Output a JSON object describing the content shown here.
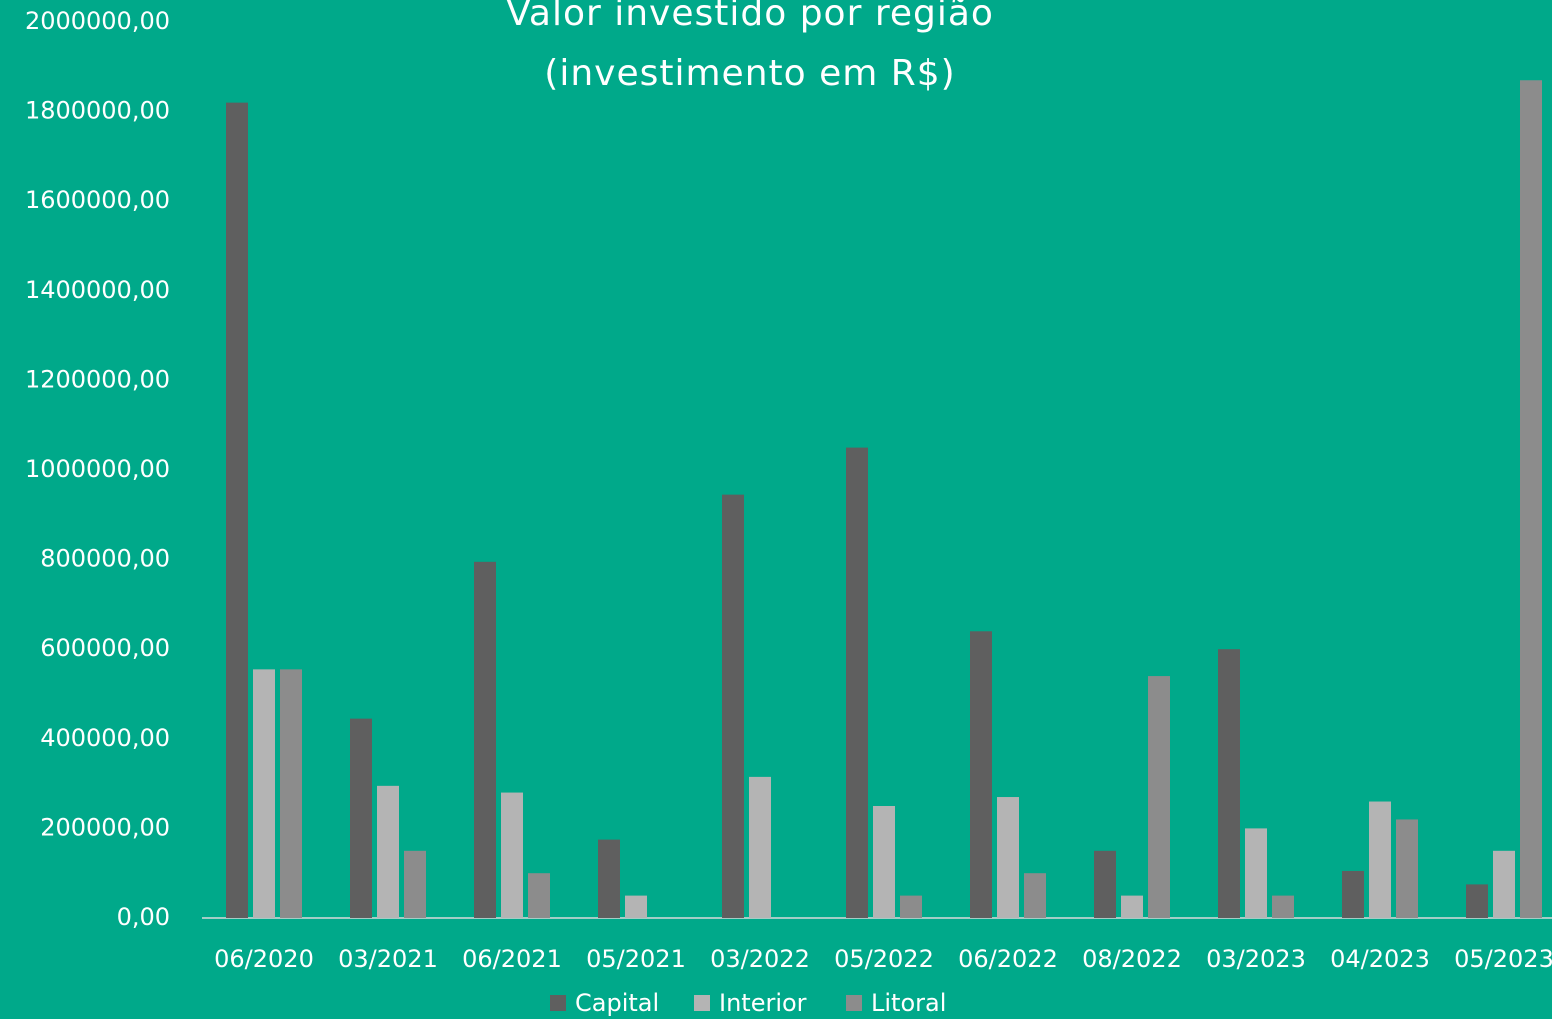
{
  "chart_data": {
    "type": "bar",
    "title": [
      "Valor investido por região",
      "(investimento em R$)"
    ],
    "categories": [
      "06/2020",
      "03/2021",
      "06/2021",
      "05/2021",
      "03/2022",
      "05/2022",
      "06/2022",
      "08/2022",
      "03/2023",
      "04/2023",
      "05/2023"
    ],
    "series": [
      {
        "name": "Capital",
        "color": "#5f5f5f",
        "values": [
          1820000,
          445000,
          795000,
          175000,
          945000,
          1050000,
          640000,
          150000,
          600000,
          105000,
          75000
        ]
      },
      {
        "name": "Interior",
        "color": "#b4b4b4",
        "values": [
          555000,
          295000,
          280000,
          50000,
          315000,
          250000,
          270000,
          50000,
          200000,
          260000,
          150000
        ]
      },
      {
        "name": "Litoral",
        "color": "#8c8c8c",
        "values": [
          555000,
          150000,
          100000,
          0,
          0,
          50000,
          100000,
          540000,
          50000,
          220000,
          1870000
        ]
      }
    ],
    "ylim": [
      0,
      2000000
    ],
    "yticks": [
      {
        "value": 0,
        "label": "0,00"
      },
      {
        "value": 200000,
        "label": "200000,00"
      },
      {
        "value": 400000,
        "label": "400000,00"
      },
      {
        "value": 600000,
        "label": "600000,00"
      },
      {
        "value": 800000,
        "label": "800000,00"
      },
      {
        "value": 1000000,
        "label": "1000000,00"
      },
      {
        "value": 1200000,
        "label": "1200000,00"
      },
      {
        "value": 1400000,
        "label": "1400000,00"
      },
      {
        "value": 1600000,
        "label": "1600000,00"
      },
      {
        "value": 1800000,
        "label": "1800000,00"
      },
      {
        "value": 2000000,
        "label": "2000000,00"
      }
    ],
    "legend": "bottom"
  }
}
